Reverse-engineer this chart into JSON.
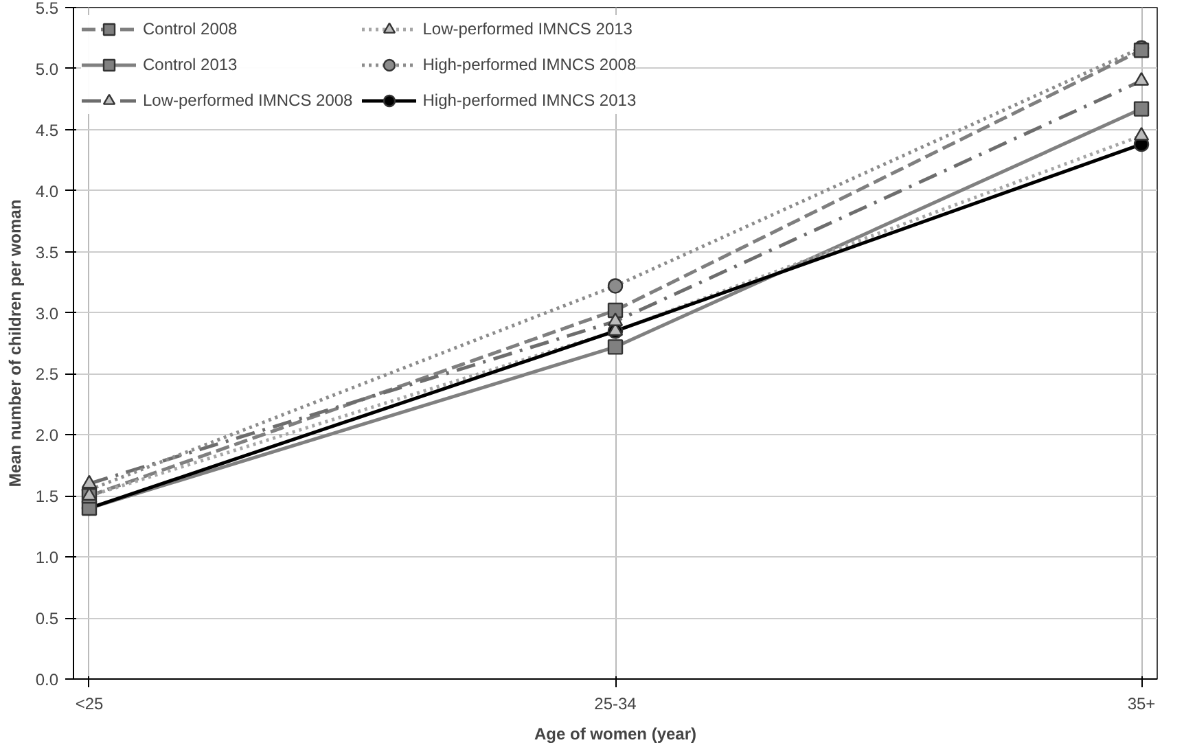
{
  "chart_data": {
    "type": "line",
    "xlabel": "Age of women (year)",
    "ylabel": "Mean number of children per woman",
    "categories": [
      "<25",
      "25-34",
      "35+"
    ],
    "ylim": [
      0,
      5.5
    ],
    "yticks": [
      {
        "value": 0,
        "label": "0.0"
      },
      {
        "value": 0.5,
        "label": "0.5"
      },
      {
        "value": 1,
        "label": "1.0"
      },
      {
        "value": 1.5,
        "label": "1.5"
      },
      {
        "value": 2,
        "label": "2.0"
      },
      {
        "value": 2.5,
        "label": "2.5"
      },
      {
        "value": 3,
        "label": "3.0"
      },
      {
        "value": 3.5,
        "label": "3.5"
      },
      {
        "value": 4,
        "label": "4.0"
      },
      {
        "value": 4.5,
        "label": "4.5"
      },
      {
        "value": 5,
        "label": "5.0"
      },
      {
        "value": 5.5,
        "label": "5.5"
      }
    ],
    "grid": true,
    "legend": "top left",
    "series": [
      {
        "name": "Control 2008",
        "color": "#7f7f7f",
        "marker": "square",
        "line_style": "dashed",
        "values": [
          1.5,
          3.02,
          5.15
        ]
      },
      {
        "name": "Control 2013",
        "color": "#808080",
        "marker": "square",
        "line_style": "solid",
        "values": [
          1.4,
          2.72,
          4.67
        ]
      },
      {
        "name": "Low-performed IMNCS 2008",
        "color": "#6d6d6d",
        "marker": "triangle",
        "line_style": "dashdot",
        "values": [
          1.6,
          2.93,
          4.9
        ]
      },
      {
        "name": "Low-performed IMNCS 2013",
        "color": "#a6a6a6",
        "marker": "triangle",
        "line_style": "dotted",
        "values": [
          1.5,
          2.85,
          4.45
        ]
      },
      {
        "name": "High-performed IMNCS 2008",
        "color": "#8c8c8c",
        "marker": "circle",
        "line_style": "dotted",
        "values": [
          1.55,
          3.22,
          5.17
        ]
      },
      {
        "name": "High-performed IMNCS 2013",
        "color": "#000000",
        "marker": "circle",
        "line_style": "solid",
        "values": [
          1.4,
          2.85,
          4.38
        ]
      }
    ]
  }
}
